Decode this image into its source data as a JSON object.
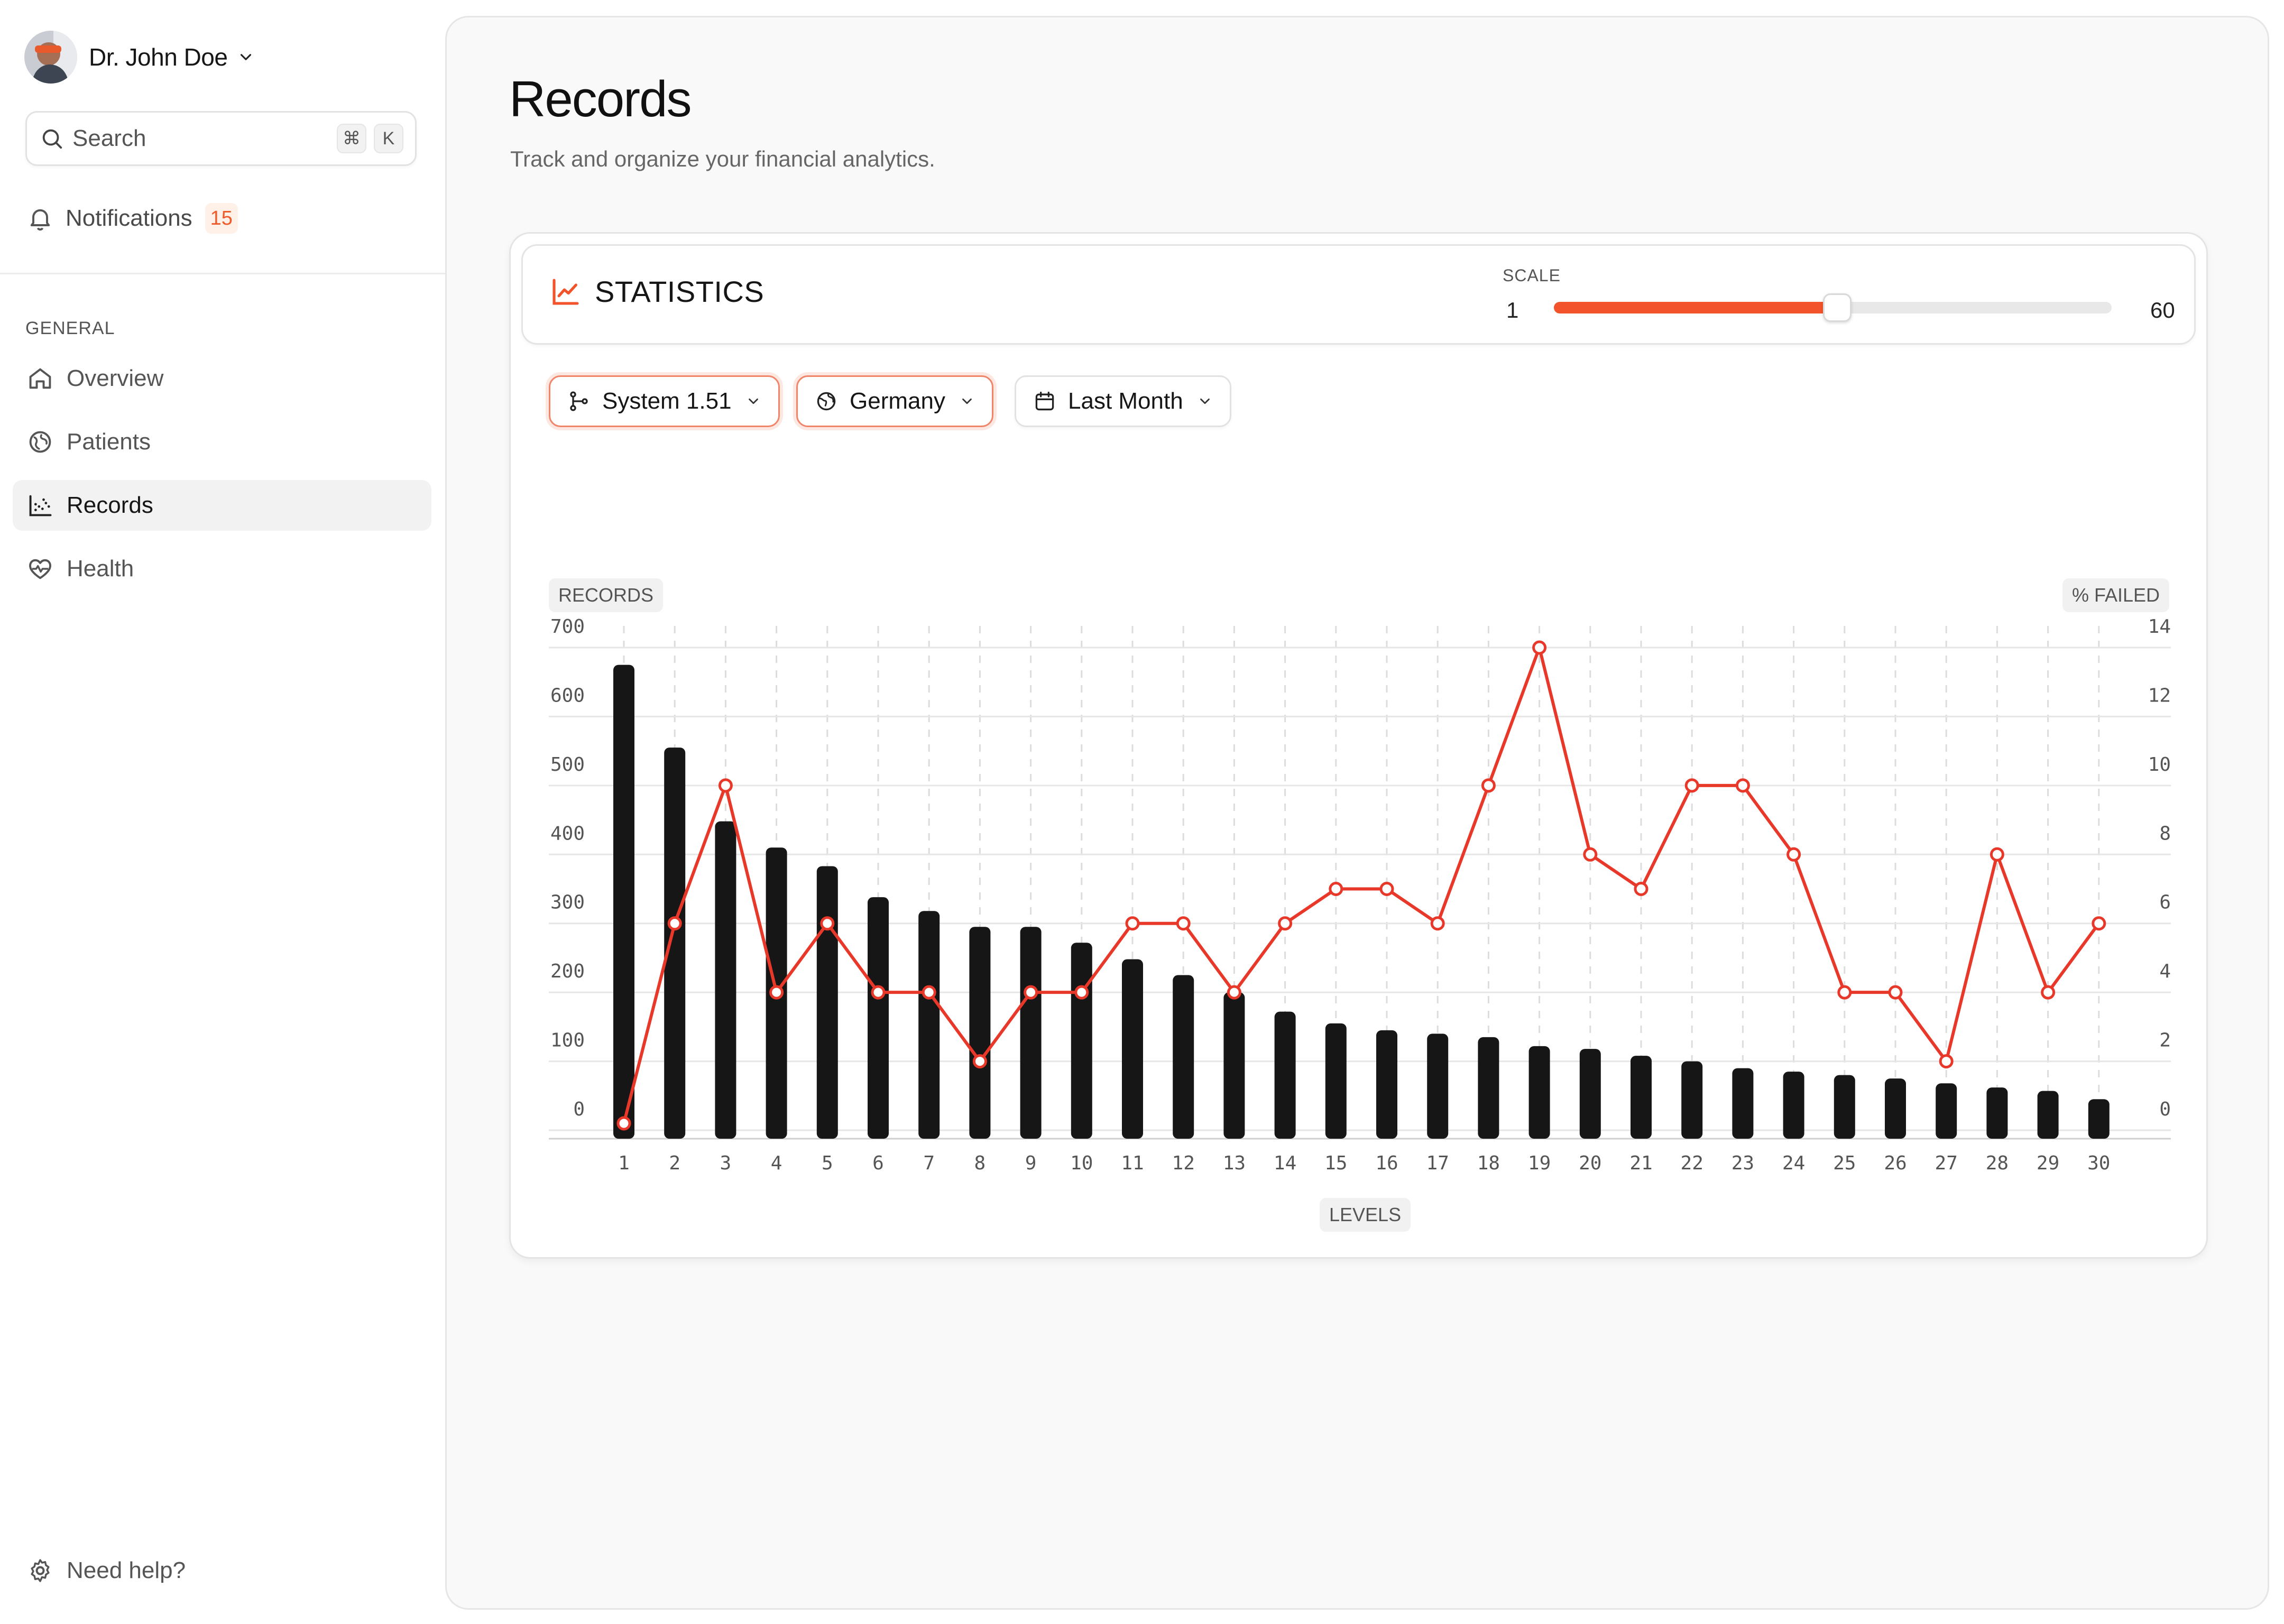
{
  "sidebar": {
    "user": {
      "name": "Dr. John Doe"
    },
    "search": {
      "placeholder": "Search",
      "shortcut_keys": [
        "⌘",
        "K"
      ]
    },
    "notifications": {
      "label": "Notifications",
      "count": "15"
    },
    "section_label": "GENERAL",
    "items": [
      {
        "label": "Overview",
        "icon": "home-icon",
        "active": false
      },
      {
        "label": "Patients",
        "icon": "patients-icon",
        "active": false
      },
      {
        "label": "Records",
        "icon": "chart-dots-icon",
        "active": true
      },
      {
        "label": "Health",
        "icon": "heart-pulse-icon",
        "active": false
      }
    ],
    "help_label": "Need help?"
  },
  "main": {
    "title": "Records",
    "subtitle": "Track and organize your financial analytics."
  },
  "statistics": {
    "title": "STATISTICS",
    "scale": {
      "label": "SCALE",
      "min": "1",
      "max": "60",
      "value": 31
    }
  },
  "filters": [
    {
      "label": "System 1.51",
      "icon": "git-branch-icon",
      "highlighted": true
    },
    {
      "label": "Germany",
      "icon": "globe-icon",
      "highlighted": true
    },
    {
      "label": "Last Month",
      "icon": "calendar-icon",
      "highlighted": false
    }
  ],
  "colors": {
    "accent": "#f2532a",
    "line": "#e8382a",
    "bar": "#161616"
  },
  "chart_data": {
    "type": "bar",
    "xlabel": "LEVELS",
    "ylabel": "RECORDS",
    "y2label": "% FAILED",
    "ylim": [
      0,
      700
    ],
    "y2lim": [
      0,
      14
    ],
    "yticks": [
      0,
      100,
      200,
      300,
      400,
      500,
      600,
      700
    ],
    "y2ticks": [
      0,
      2,
      4,
      6,
      8,
      10,
      12,
      14
    ],
    "categories": [
      "1",
      "2",
      "3",
      "4",
      "5",
      "6",
      "7",
      "8",
      "9",
      "10",
      "11",
      "12",
      "13",
      "14",
      "15",
      "16",
      "17",
      "18",
      "19",
      "20",
      "21",
      "22",
      "23",
      "24",
      "25",
      "26",
      "27",
      "28",
      "29",
      "30"
    ],
    "series": [
      {
        "type": "bar",
        "axis": "left",
        "values": [
          675,
          555,
          448,
          410,
          383,
          338,
          318,
          295,
          295,
          272,
          248,
          225,
          200,
          172,
          155,
          145,
          140,
          135,
          122,
          118,
          108,
          100,
          90,
          85,
          80,
          75,
          68,
          62,
          57,
          45
        ]
      },
      {
        "type": "line",
        "axis": "right",
        "values": [
          0.2,
          6,
          10,
          4,
          6,
          4,
          4,
          2,
          4,
          4,
          6,
          6,
          4,
          6,
          7,
          7,
          6,
          10,
          14,
          8,
          7,
          10,
          10,
          8,
          4,
          4,
          2,
          8,
          4,
          6
        ]
      }
    ]
  }
}
